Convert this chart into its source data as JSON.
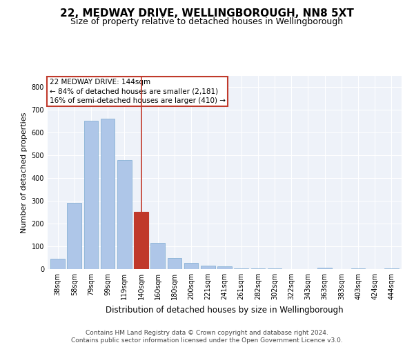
{
  "title1": "22, MEDWAY DRIVE, WELLINGBOROUGH, NN8 5XT",
  "title2": "Size of property relative to detached houses in Wellingborough",
  "xlabel": "Distribution of detached houses by size in Wellingborough",
  "ylabel": "Number of detached properties",
  "bar_labels": [
    "38sqm",
    "58sqm",
    "79sqm",
    "99sqm",
    "119sqm",
    "140sqm",
    "160sqm",
    "180sqm",
    "200sqm",
    "221sqm",
    "241sqm",
    "261sqm",
    "282sqm",
    "302sqm",
    "322sqm",
    "343sqm",
    "363sqm",
    "383sqm",
    "403sqm",
    "424sqm",
    "444sqm"
  ],
  "bar_heights": [
    46,
    291,
    652,
    661,
    479,
    252,
    115,
    50,
    27,
    14,
    12,
    4,
    4,
    3,
    0,
    0,
    5,
    0,
    3,
    0,
    2
  ],
  "bar_color": "#aec6e8",
  "bar_edge_color": "#7aaad0",
  "highlight_bar_index": 5,
  "highlight_bar_color": "#c0392b",
  "highlight_bar_edge_color": "#c0392b",
  "vline_color": "#c0392b",
  "annotation_text": "22 MEDWAY DRIVE: 144sqm\n← 84% of detached houses are smaller (2,181)\n16% of semi-detached houses are larger (410) →",
  "annotation_box_color": "#ffffff",
  "annotation_box_edge_color": "#c0392b",
  "footer_text": "Contains HM Land Registry data © Crown copyright and database right 2024.\nContains public sector information licensed under the Open Government Licence v3.0.",
  "ylim": [
    0,
    850
  ],
  "yticks": [
    0,
    100,
    200,
    300,
    400,
    500,
    600,
    700,
    800
  ],
  "background_color": "#eef2f9",
  "grid_color": "#ffffff",
  "title1_fontsize": 11,
  "title2_fontsize": 9,
  "xlabel_fontsize": 8.5,
  "ylabel_fontsize": 8,
  "tick_fontsize": 7,
  "annotation_fontsize": 7.5,
  "footer_fontsize": 6.5
}
